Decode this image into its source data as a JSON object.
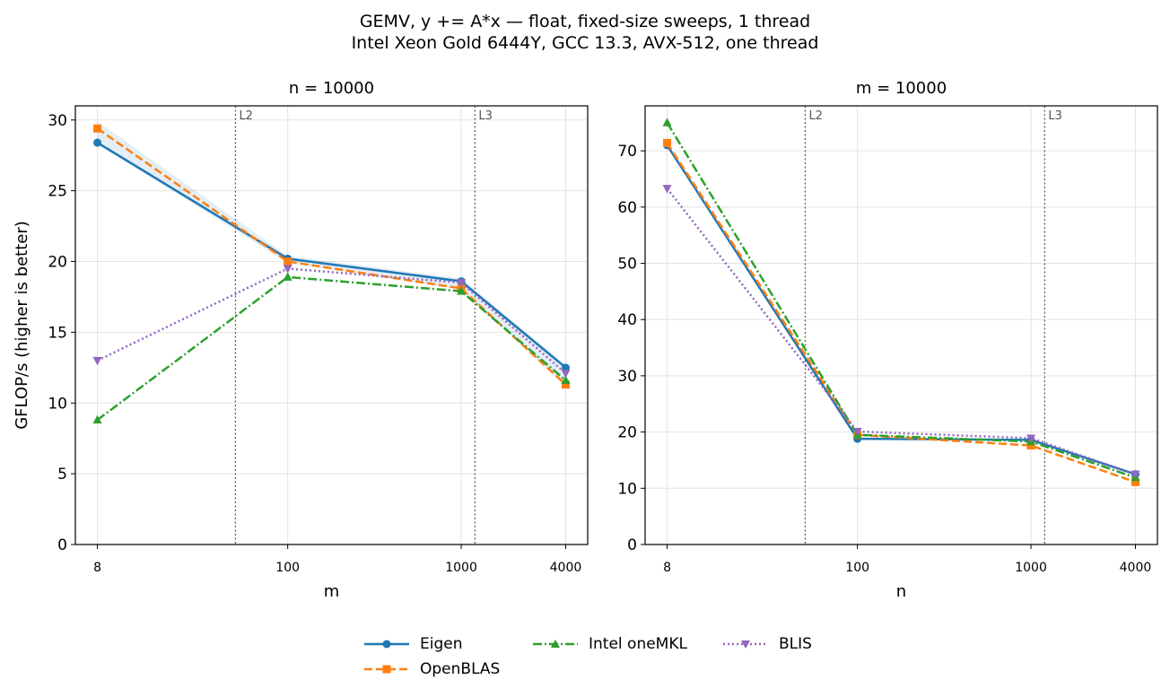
{
  "figure": {
    "title_line1": "GEMV, y += A*x — float, fixed-size sweeps, 1 thread",
    "title_line2": "Intel Xeon Gold 6444Y, GCC 13.3, AVX-512, one thread"
  },
  "legend": {
    "placement": "bottom-center",
    "entries": [
      "Eigen",
      "OpenBLAS",
      "Intel oneMKL",
      "BLIS"
    ]
  },
  "colors": {
    "Eigen": "#1f77b4",
    "OpenBLAS": "#ff7f0e",
    "Intel oneMKL": "#2ca02c",
    "BLIS": "#9467bd"
  },
  "chart_data": [
    {
      "type": "line",
      "title": "n = 10000",
      "xlabel": "m",
      "ylabel": "GFLOP/s (higher is better)",
      "xscale": "log",
      "x": [
        8,
        100,
        1000,
        4000
      ],
      "xtick_labels": [
        "8",
        "100",
        "1000",
        "4000"
      ],
      "ylim": [
        0,
        31
      ],
      "yticks": [
        0,
        5,
        10,
        15,
        20,
        25,
        30
      ],
      "grid": true,
      "cache_markers": [
        {
          "label": "L2",
          "x": 50
        },
        {
          "label": "L3",
          "x": 1200
        }
      ],
      "series": [
        {
          "name": "Eigen",
          "values": [
            28.4,
            20.2,
            18.6,
            12.5
          ]
        },
        {
          "name": "OpenBLAS",
          "values": [
            29.4,
            20.0,
            18.1,
            11.3
          ]
        },
        {
          "name": "Intel oneMKL",
          "values": [
            8.8,
            18.9,
            17.9,
            11.6
          ]
        },
        {
          "name": "BLIS",
          "values": [
            13.0,
            19.5,
            18.5,
            12.1
          ]
        }
      ]
    },
    {
      "type": "line",
      "title": "m = 10000",
      "xlabel": "n",
      "ylabel": "",
      "xscale": "log",
      "x": [
        8,
        100,
        1000,
        4000
      ],
      "xtick_labels": [
        "8",
        "100",
        "1000",
        "4000"
      ],
      "ylim": [
        0,
        78
      ],
      "yticks": [
        0,
        10,
        20,
        30,
        40,
        50,
        60,
        70
      ],
      "grid": true,
      "cache_markers": [
        {
          "label": "L2",
          "x": 50
        },
        {
          "label": "L3",
          "x": 1200
        }
      ],
      "series": [
        {
          "name": "Eigen",
          "values": [
            71.0,
            18.8,
            18.6,
            12.5
          ]
        },
        {
          "name": "OpenBLAS",
          "values": [
            71.4,
            19.5,
            17.6,
            11.1
          ]
        },
        {
          "name": "Intel oneMKL",
          "values": [
            75.0,
            19.5,
            18.3,
            11.9
          ]
        },
        {
          "name": "BLIS",
          "values": [
            63.3,
            20.1,
            18.9,
            12.5
          ]
        }
      ]
    }
  ]
}
